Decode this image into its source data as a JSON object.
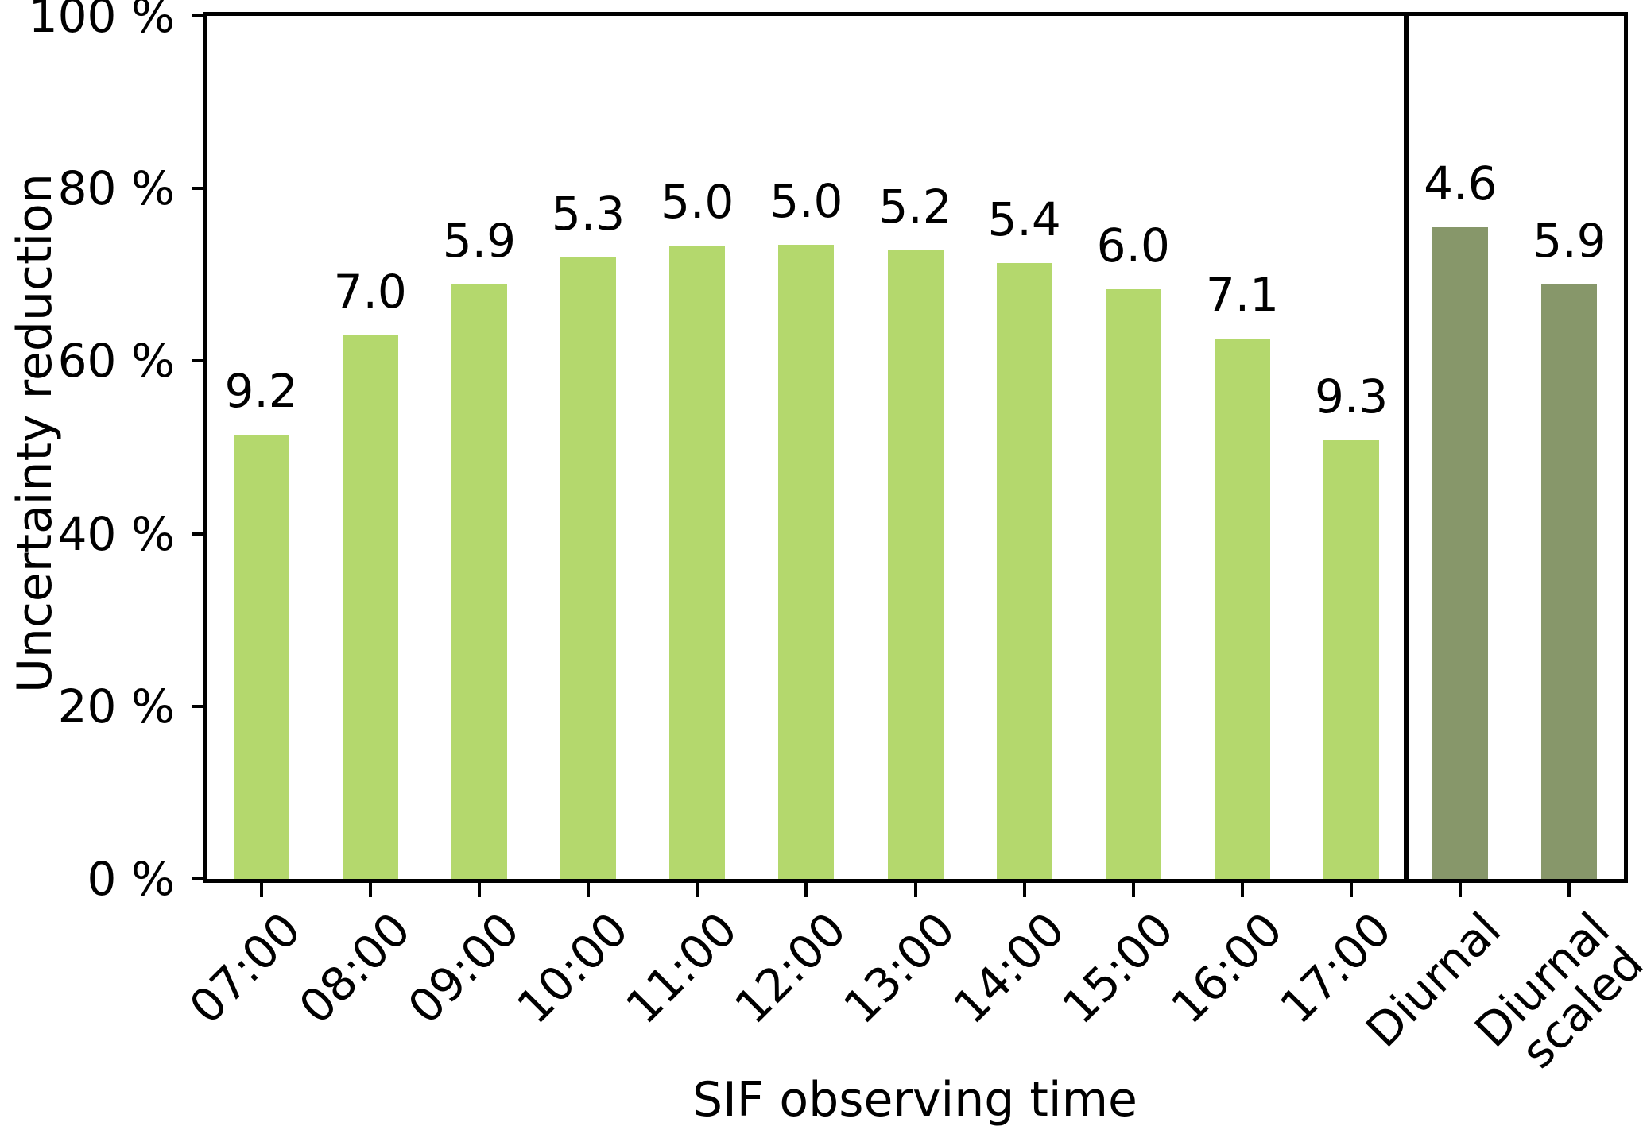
{
  "chart_data": {
    "type": "bar",
    "title": "",
    "xlabel": "SIF observing time",
    "ylabel": "Uncertainty reduction",
    "categories": [
      "07:00",
      "08:00",
      "09:00",
      "10:00",
      "11:00",
      "12:00",
      "13:00",
      "14:00",
      "15:00",
      "16:00",
      "17:00",
      "Diurnal",
      "Diurnal\nscaled"
    ],
    "values": [
      51.5,
      63.0,
      68.9,
      72.0,
      73.4,
      73.5,
      72.8,
      71.4,
      68.3,
      62.6,
      50.8,
      75.5,
      68.9
    ],
    "bar_value_labels": [
      "9.2",
      "7.0",
      "5.9",
      "5.3",
      "5.0",
      "5.0",
      "5.2",
      "5.4",
      "6.0",
      "7.1",
      "9.3",
      "4.6",
      "5.9"
    ],
    "bar_colors": [
      "#b4d86d",
      "#b4d86d",
      "#b4d86d",
      "#b4d86d",
      "#b4d86d",
      "#b4d86d",
      "#b4d86d",
      "#b4d86d",
      "#b4d86d",
      "#b4d86d",
      "#b4d86d",
      "#87976a",
      "#87976a"
    ],
    "ylim": [
      0,
      100
    ],
    "yticks": {
      "values": [
        0,
        20,
        40,
        60,
        80,
        100
      ],
      "labels": [
        "0 %",
        "20 %",
        "40 %",
        "60 %",
        "80 %",
        "100 %"
      ]
    },
    "separator_after_index": 10,
    "grid": "off",
    "legend": "none",
    "axis_color": "#000000",
    "background_color": "#ffffff"
  }
}
